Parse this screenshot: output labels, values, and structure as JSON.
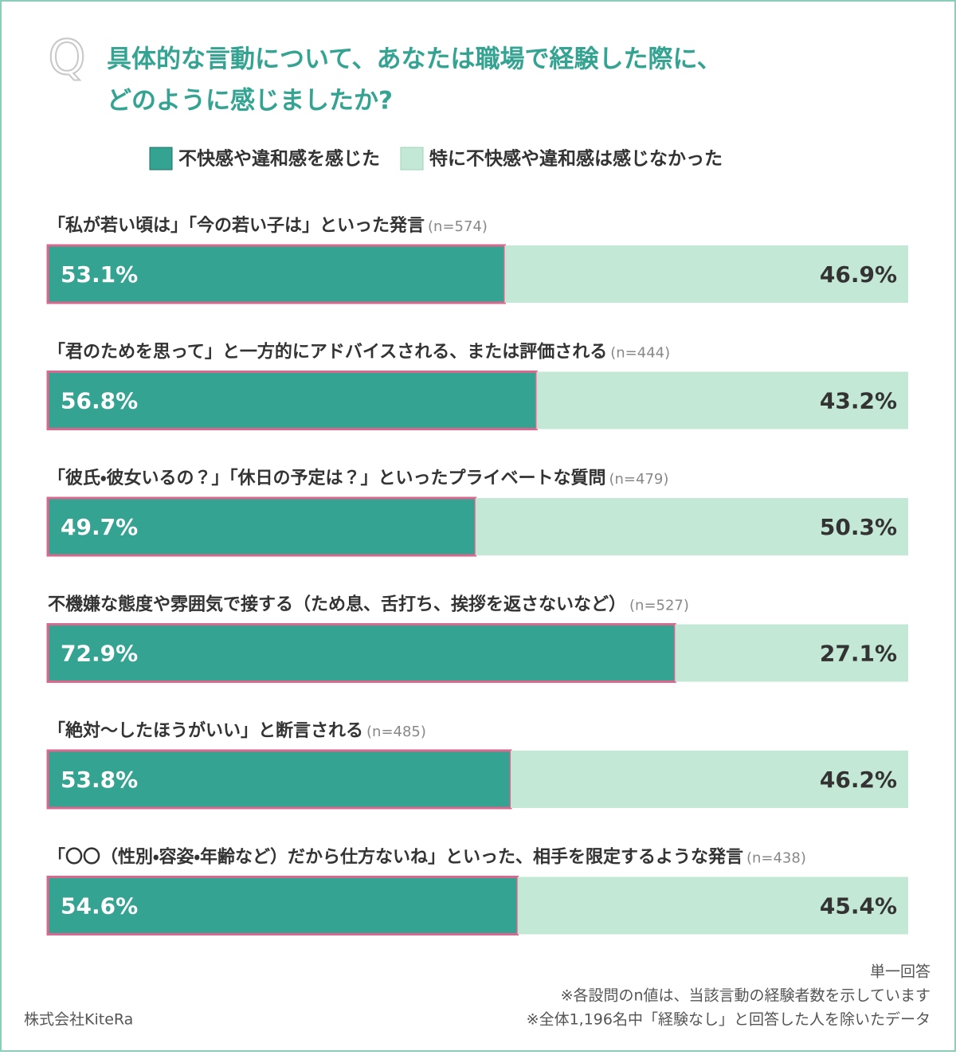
{
  "chart_data": {
    "type": "bar",
    "orientation": "horizontal",
    "stacked": true,
    "question_marker": "Q",
    "title_lines": [
      "具体的な言動について、あなたは職場で経験した際に、",
      "どのように感じましたか?"
    ],
    "categories": [
      "「私が若い頃は」「今の若い子は」といった発言",
      "「君のためを思って」と一方的にアドバイスされる、または評価される",
      "「彼氏・彼女いるの？」「休日の予定は？」といったプライベートな質問",
      "不機嫌な態度や雰囲気で接する（ため息、舌打ち、挨拶を返さないなど）",
      "「絶対〜したほうがいい」と断言される",
      "「〇〇（性別・容姿・年齢など）だから仕方ないね」といった、相手を限定するような発言"
    ],
    "sample_sizes": [
      "(n=574)",
      "(n=444)",
      "(n=479)",
      "(n=527)",
      "(n=485)",
      "(n=438)"
    ],
    "series": [
      {
        "name": "不快感や違和感を感じた",
        "color": "#35a392",
        "outline": "#d9678e",
        "values": [
          53.1,
          56.8,
          49.7,
          72.9,
          53.8,
          54.6
        ],
        "value_labels": [
          "53.1%",
          "56.8%",
          "49.7%",
          "72.9%",
          "53.8%",
          "54.6%"
        ]
      },
      {
        "name": "特に不快感や違和感は感じなかった",
        "color": "#c4e8d6",
        "values": [
          46.9,
          43.2,
          50.3,
          27.1,
          46.2,
          45.4
        ],
        "value_labels": [
          "46.9%",
          "43.2%",
          "50.3%",
          "27.1%",
          "46.2%",
          "45.4%"
        ]
      }
    ],
    "xlim": [
      0,
      100
    ],
    "notes": [
      "単一回答",
      "※各設問のn値は、当該言動の経験者数を示しています",
      "※全体1,196名中「経験なし」と回答した人を除いたデータ"
    ],
    "source": "株式会社KiteRa"
  }
}
